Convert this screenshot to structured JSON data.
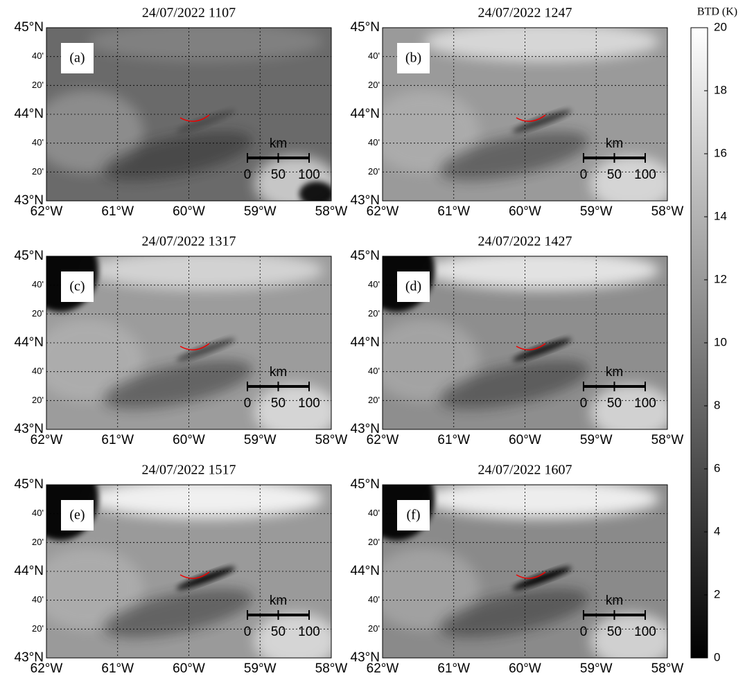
{
  "panels": [
    {
      "title": "24/07/2022 1107",
      "label": "(a)"
    },
    {
      "title": "24/07/2022 1247",
      "label": "(b)"
    },
    {
      "title": "24/07/2022 1317",
      "label": "(c)"
    },
    {
      "title": "24/07/2022 1427",
      "label": "(d)"
    },
    {
      "title": "24/07/2022 1517",
      "label": "(e)"
    },
    {
      "title": "24/07/2022 1607",
      "label": "(f)"
    }
  ],
  "lat_ticks": [
    "45°N",
    "40'",
    "20'",
    "44°N",
    "40'",
    "20'",
    "43°N"
  ],
  "lon_ticks": [
    "62°W",
    "61°W",
    "60°W",
    "59°W",
    "58°W"
  ],
  "scale_bar": {
    "unit": "km",
    "ticks": [
      0,
      50,
      100
    ]
  },
  "colorbar": {
    "label": "BTD (K)",
    "range": [
      0,
      20
    ],
    "ticks": [
      0,
      2,
      4,
      6,
      8,
      10,
      12,
      14,
      16,
      18,
      20
    ]
  }
}
